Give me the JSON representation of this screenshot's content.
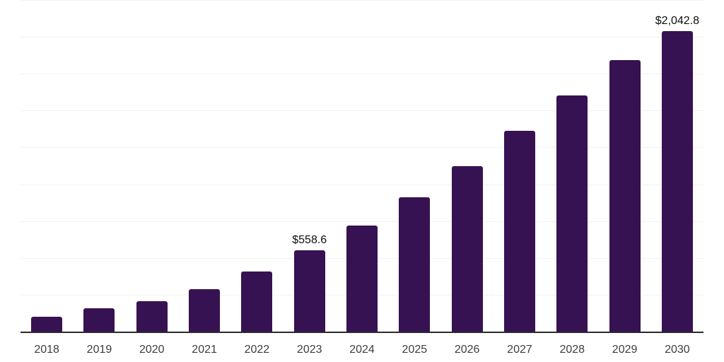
{
  "page": {
    "background": "#ffffff"
  },
  "chart": {
    "colors": {
      "bar": "#371253",
      "gridline": "#f2f2f2",
      "axis_line": "#2b2b2b",
      "tick_label": "#3d3d3d",
      "data_label": "#0d0d0d"
    }
  },
  "chart_data": {
    "type": "bar",
    "title": "",
    "xlabel": "",
    "ylabel": "",
    "categories": [
      "2018",
      "2019",
      "2020",
      "2021",
      "2022",
      "2023",
      "2024",
      "2025",
      "2026",
      "2027",
      "2028",
      "2029",
      "2030"
    ],
    "values": [
      107,
      163,
      211,
      293,
      413,
      558.6,
      723,
      916,
      1128,
      1368,
      1608,
      1848,
      2042.8
    ],
    "data_labels": [
      {
        "category": "2023",
        "text": "$558.6"
      },
      {
        "category": "2030",
        "text": "$2,042.8"
      }
    ],
    "ylim": [
      0,
      2250
    ],
    "gridline_interval": 250,
    "grid": "horizontal",
    "y_axis_labels_visible": false,
    "legend_position": "none"
  }
}
